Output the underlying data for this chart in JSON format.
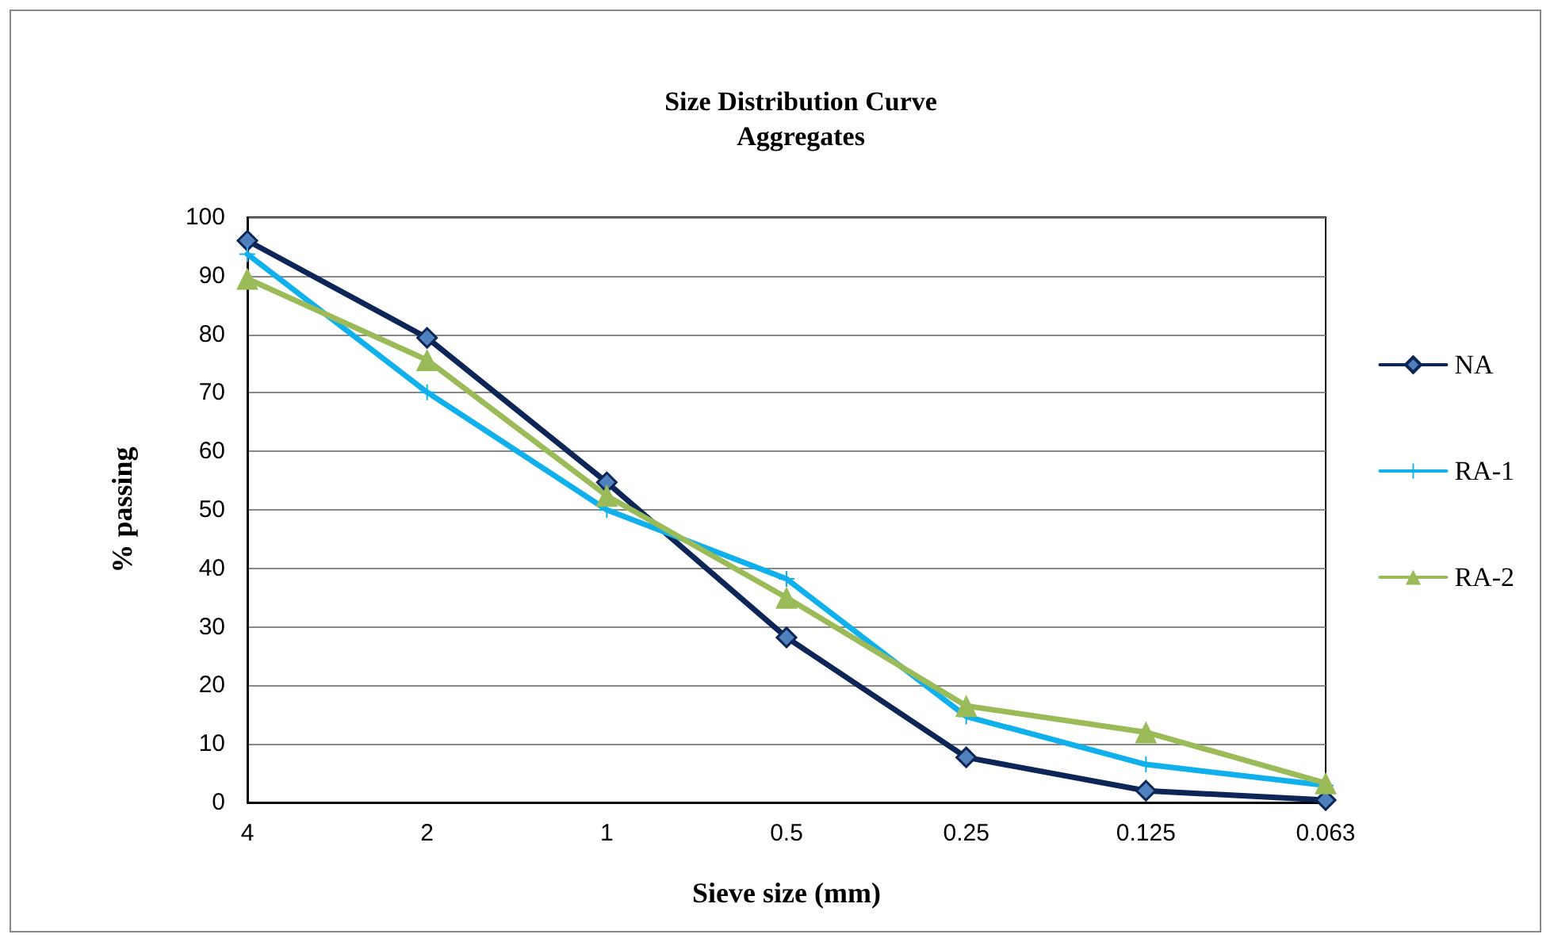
{
  "chart_data": {
    "type": "line",
    "title": "Size Distribution Curve\nAggregates",
    "xlabel": "Sieve size (mm)",
    "ylabel": "% passing",
    "categories": [
      "4",
      "2",
      "1",
      "0.5",
      "0.25",
      "0.125",
      "0.063"
    ],
    "series": [
      {
        "name": "NA",
        "color": "#0d2557",
        "marker": "diamond",
        "values": [
          96,
          79.4,
          54.7,
          28.2,
          7.7,
          2,
          0.4
        ]
      },
      {
        "name": "RA-1",
        "color": "#10b0ec",
        "marker": "cross",
        "values": [
          93.7,
          70.1,
          50,
          38.2,
          14.7,
          6.5,
          2.9
        ]
      },
      {
        "name": "RA-2",
        "color": "#9bbb59",
        "marker": "triangle",
        "values": [
          89.5,
          75.6,
          52.4,
          35,
          16.5,
          12,
          3.3
        ]
      }
    ],
    "ylim": [
      0,
      100
    ],
    "yticks": [
      0,
      10,
      20,
      30,
      40,
      50,
      60,
      70,
      80,
      90,
      100
    ],
    "grid": "y",
    "legend": "right",
    "line_style": "solid"
  }
}
